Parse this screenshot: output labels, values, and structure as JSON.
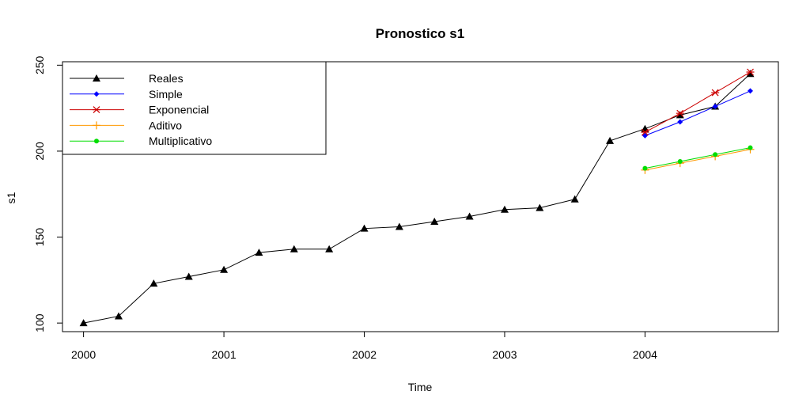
{
  "chart_data": {
    "type": "line",
    "title": "Pronostico s1",
    "xlabel": "Time",
    "ylabel": "s1",
    "xlim": [
      1999.85,
      2004.95
    ],
    "ylim": [
      95,
      252
    ],
    "x_ticks": [
      2000,
      2001,
      2002,
      2003,
      2004
    ],
    "x_tick_labels": [
      "2000",
      "2001",
      "2002",
      "2003",
      "2004"
    ],
    "y_ticks": [
      100,
      150,
      200,
      250
    ],
    "y_tick_labels": [
      "100",
      "150",
      "200",
      "250"
    ],
    "grid": false,
    "legend_position": "top-left",
    "series": [
      {
        "name": "Reales",
        "color": "#000000",
        "marker": "triangle",
        "x": [
          2000,
          2000.25,
          2000.5,
          2000.75,
          2001,
          2001.25,
          2001.5,
          2001.75,
          2002,
          2002.25,
          2002.5,
          2002.75,
          2003,
          2003.25,
          2003.5,
          2003.75,
          2004,
          2004.25,
          2004.5,
          2004.75
        ],
        "values": [
          100,
          104,
          123,
          127,
          131,
          141,
          143,
          143,
          155,
          156,
          159,
          162,
          166,
          167,
          172,
          206,
          213,
          221,
          226,
          245
        ]
      },
      {
        "name": "Simple",
        "color": "#0000ff",
        "marker": "diamond",
        "x": [
          2004,
          2004.25,
          2004.5,
          2004.75
        ],
        "values": [
          209,
          217,
          226,
          235
        ]
      },
      {
        "name": "Exponencial",
        "color": "#cc0000",
        "marker": "asterisk",
        "x": [
          2004,
          2004.25,
          2004.5,
          2004.75
        ],
        "values": [
          211,
          222,
          234,
          246
        ]
      },
      {
        "name": "Aditivo",
        "color": "#ff9900",
        "marker": "plus",
        "x": [
          2004,
          2004.25,
          2004.5,
          2004.75
        ],
        "values": [
          189,
          193,
          197,
          201
        ]
      },
      {
        "name": "Multiplicativo",
        "color": "#00dd00",
        "marker": "dot",
        "x": [
          2004,
          2004.25,
          2004.5,
          2004.75
        ],
        "values": [
          190,
          194,
          198,
          202
        ]
      }
    ]
  }
}
